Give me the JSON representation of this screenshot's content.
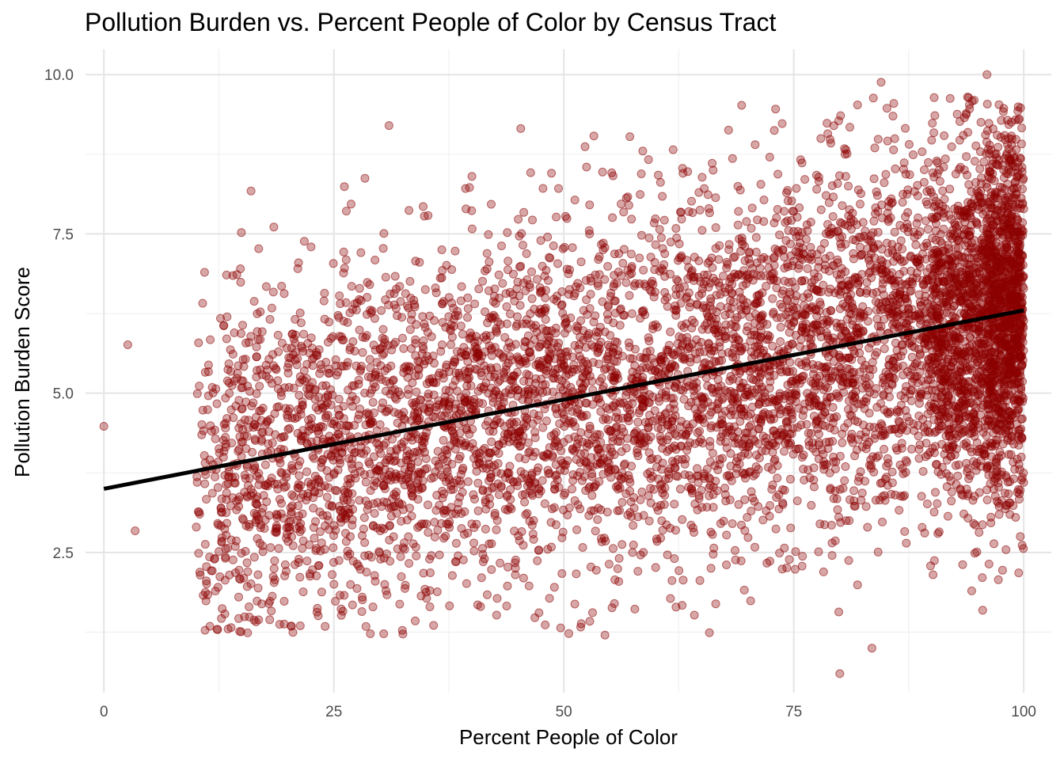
{
  "chart_data": {
    "type": "scatter",
    "title": "Pollution Burden vs. Percent People of Color by Census Tract",
    "xlabel": "Percent People of Color",
    "ylabel": "Pollution Burden Score",
    "xlim": [
      -2,
      103
    ],
    "ylim": [
      0.3,
      10.4
    ],
    "x_ticks": [
      0,
      25,
      50,
      75,
      100
    ],
    "x_tick_labels": [
      "0",
      "25",
      "50",
      "75",
      "100"
    ],
    "y_ticks": [
      2.5,
      5.0,
      7.5,
      10.0
    ],
    "y_tick_labels": [
      "2.5",
      "5.0",
      "7.5",
      "10.0"
    ],
    "grid": true,
    "legend": "none",
    "point_color": "#8b0000",
    "point_opacity": 0.35,
    "trend_color": "#000000",
    "trend_line": {
      "x": [
        0,
        100
      ],
      "y": [
        3.5,
        6.3
      ]
    },
    "point_count": 8000,
    "points_description_sample": [
      {
        "x": 0,
        "y": 4.48
      },
      {
        "x": 2.6,
        "y": 5.76
      },
      {
        "x": 3.4,
        "y": 2.84
      },
      {
        "x": 31,
        "y": 9.2
      },
      {
        "x": 96,
        "y": 10.0
      },
      {
        "x": 84.5,
        "y": 9.88
      },
      {
        "x": 80,
        "y": 0.6
      },
      {
        "x": 83.5,
        "y": 1.0
      },
      {
        "x": 32.5,
        "y": 1.22
      },
      {
        "x": 11,
        "y": 1.28
      },
      {
        "x": 13.5,
        "y": 1.3
      },
      {
        "x": 100,
        "y": 3.6
      }
    ]
  }
}
